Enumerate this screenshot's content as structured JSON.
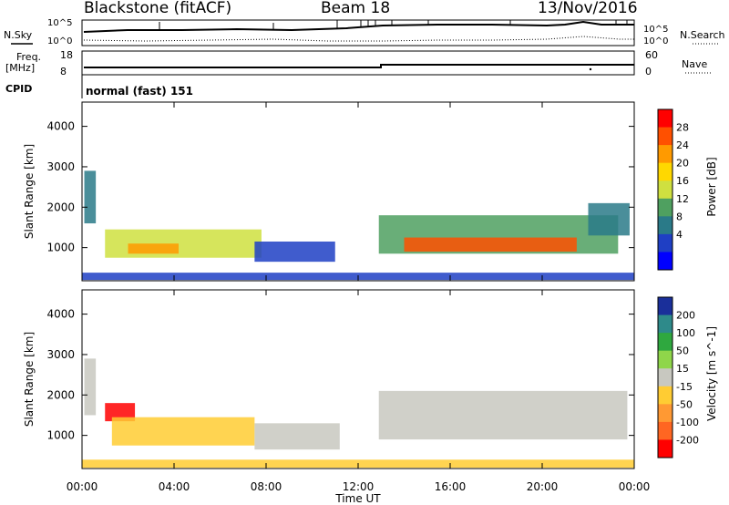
{
  "header": {
    "station": "Blackstone (fitACF)",
    "beam": "Beam 18",
    "date": "13/Nov/2016"
  },
  "top_panels": {
    "nsky_label": "N.Sky",
    "nsearch_label": "N.Search",
    "freq_label_1": "Freq.",
    "freq_label_2": "[MHz]",
    "nave_label": "Nave",
    "cpid_label": "CPID",
    "cpid_value": "normal (fast) 151",
    "noise_left_ticks": [
      "10^5",
      "10^0"
    ],
    "noise_right_ticks": [
      "10^5",
      "10^0"
    ],
    "freq_ticks": [
      "18",
      "8"
    ],
    "nave_ticks": [
      "60",
      "0"
    ]
  },
  "power_panel": {
    "ylabel": "Slant Range [km]",
    "colorbar_label": "Power [dB]",
    "colorbar_ticks": [
      "28",
      "24",
      "20",
      "16",
      "12",
      "8",
      "4"
    ],
    "colorbar_colors": [
      "#ff0000",
      "#ff5000",
      "#ff9a00",
      "#ffd800",
      "#cfe040",
      "#4fa060",
      "#2a7a88",
      "#1f3fc4",
      "#0000ff"
    ]
  },
  "velocity_panel": {
    "ylabel": "Slant Range [km]",
    "colorbar_label": "Velocity [m s^-1]",
    "colorbar_ticks": [
      "200",
      "100",
      "50",
      "15",
      "-15",
      "-50",
      "-100",
      "-200"
    ],
    "colorbar_colors": [
      "#1a2f9a",
      "#2e8a8a",
      "#2fa83f",
      "#8fd64a",
      "#c8c8c0",
      "#ffcc33",
      "#ff9933",
      "#ff6622",
      "#ff0000"
    ]
  },
  "xaxis": {
    "label": "Time UT",
    "ticks": [
      "00:00",
      "04:00",
      "08:00",
      "12:00",
      "16:00",
      "20:00",
      "00:00"
    ]
  },
  "chart_data": {
    "type": "heatmap",
    "title": "Blackstone (fitACF)",
    "x_range_hours": [
      0,
      24
    ],
    "y_range_km": [
      180,
      4600
    ],
    "yticks": [
      1000,
      2000,
      3000,
      4000
    ],
    "xlabel": "Time UT",
    "ylabel": "Slant Range [km]",
    "panels": [
      {
        "name": "Power [dB]",
        "vmin": 0,
        "vmax": 32,
        "blobs": [
          {
            "t0": 0.1,
            "t1": 0.6,
            "r0": 1600,
            "r1": 2900,
            "v": 8
          },
          {
            "t0": 1.0,
            "t1": 7.8,
            "r0": 750,
            "r1": 1450,
            "v": 16
          },
          {
            "t0": 2.0,
            "t1": 4.2,
            "r0": 850,
            "r1": 1100,
            "v": 22
          },
          {
            "t0": 7.5,
            "t1": 11.0,
            "r0": 650,
            "r1": 1150,
            "v": 7
          },
          {
            "t0": 12.9,
            "t1": 23.3,
            "r0": 850,
            "r1": 1800,
            "v": 14
          },
          {
            "t0": 14.0,
            "t1": 21.5,
            "r0": 900,
            "r1": 1250,
            "v": 27
          },
          {
            "t0": 22.0,
            "t1": 23.8,
            "r0": 1300,
            "r1": 2100,
            "v": 10
          },
          {
            "t0": 0.0,
            "t1": 24.0,
            "r0": 200,
            "r1": 380,
            "v": 6
          }
        ]
      },
      {
        "name": "Velocity [m s^-1]",
        "vmin": -250,
        "vmax": 250,
        "blobs": [
          {
            "t0": 0.1,
            "t1": 0.6,
            "r0": 1500,
            "r1": 2900,
            "v": 0
          },
          {
            "t0": 1.0,
            "t1": 2.3,
            "r0": 1350,
            "r1": 1800,
            "v": -220
          },
          {
            "t0": 1.3,
            "t1": 7.5,
            "r0": 750,
            "r1": 1450,
            "v": -70
          },
          {
            "t0": 7.5,
            "t1": 11.2,
            "r0": 650,
            "r1": 1300,
            "v": -20
          },
          {
            "t0": 12.9,
            "t1": 23.7,
            "r0": 900,
            "r1": 2100,
            "v": 0
          },
          {
            "t0": 0.0,
            "t1": 24.0,
            "r0": 200,
            "r1": 400,
            "v": -40
          }
        ]
      }
    ]
  }
}
